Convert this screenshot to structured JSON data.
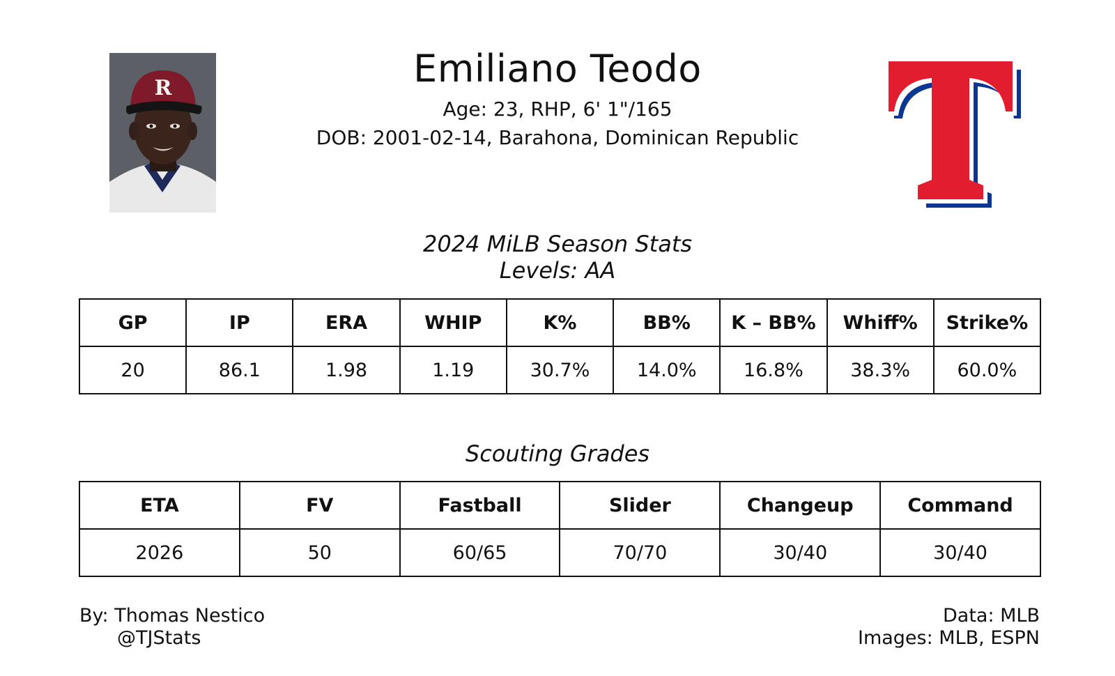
{
  "player": {
    "name": "Emiliano Teodo",
    "age_line": "Age: 23, RHP, 6' 1\"/165",
    "dob_line": "DOB: 2001-02-14, Barahona, Dominican Republic"
  },
  "photo": {
    "icon": "player-headshot"
  },
  "logo": {
    "icon": "texas-rangers-t-logo",
    "colors": {
      "red": "#e21d2f",
      "blue": "#0d3593",
      "white": "#ffffff"
    }
  },
  "stats": {
    "title": "2024 MiLB Season Stats",
    "subtitle": "Levels: AA",
    "headers": [
      "GP",
      "IP",
      "ERA",
      "WHIP",
      "K%",
      "BB%",
      "K – BB%",
      "Whiff%",
      "Strike%"
    ],
    "values": [
      "20",
      "86.1",
      "1.98",
      "1.19",
      "30.7%",
      "14.0%",
      "16.8%",
      "38.3%",
      "60.0%"
    ]
  },
  "grades": {
    "title": "Scouting Grades",
    "headers": [
      "ETA",
      "FV",
      "Fastball",
      "Slider",
      "Changeup",
      "Command"
    ],
    "values": [
      "2026",
      "50",
      "60/65",
      "70/70",
      "30/40",
      "30/40"
    ]
  },
  "footer": {
    "author": "By: Thomas Nestico",
    "handle": "@TJStats",
    "data_source": "Data: MLB",
    "images_source": "Images: MLB, ESPN"
  }
}
